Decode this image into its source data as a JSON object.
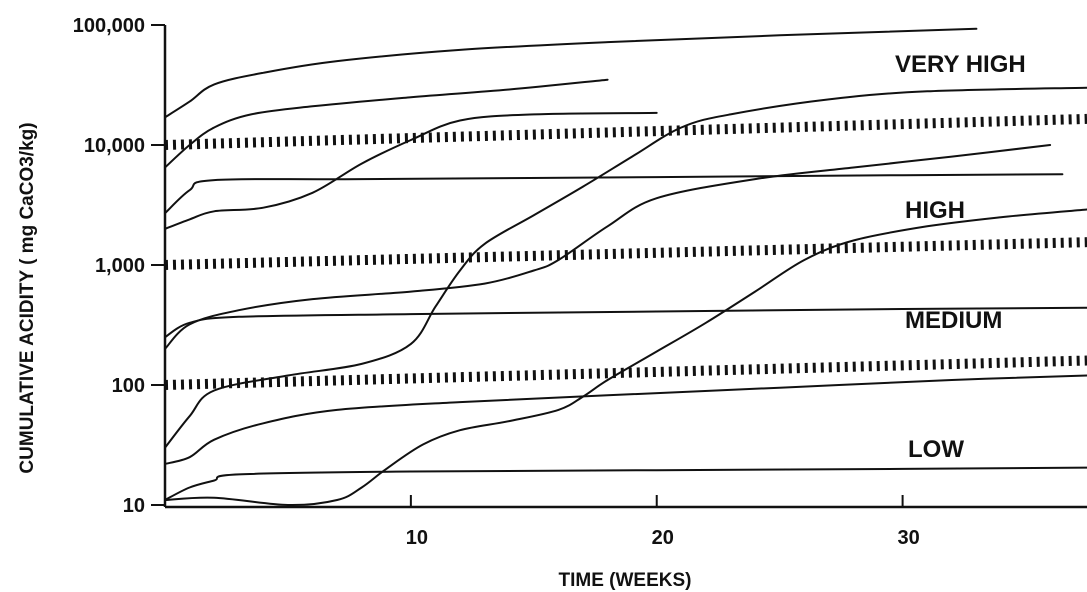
{
  "chart_data": {
    "type": "line",
    "xlabel": "TIME (WEEKS)",
    "ylabel": "CUMULATIVE ACIDITY ( mg CaCO3/kg)",
    "xlim": [
      0,
      37.5
    ],
    "ylim": [
      10,
      100000
    ],
    "yscale": "log",
    "grid": false,
    "x_ticks": [
      {
        "value": 10,
        "label": "10"
      },
      {
        "value": 20,
        "label": "20"
      },
      {
        "value": 30,
        "label": "30"
      }
    ],
    "y_ticks": [
      {
        "value": 10,
        "label": "10"
      },
      {
        "value": 100,
        "label": "100"
      },
      {
        "value": 1000,
        "label": "1,000"
      },
      {
        "value": 10000,
        "label": "10,000"
      },
      {
        "value": 100000,
        "label": "100,000"
      }
    ],
    "zones": [
      {
        "label": "VERY HIGH"
      },
      {
        "label": "HIGH"
      },
      {
        "label": "MEDIUM"
      },
      {
        "label": "LOW"
      }
    ],
    "zone_boundaries": [
      {
        "points": [
          [
            0,
            100
          ],
          [
            37.5,
            160
          ]
        ]
      },
      {
        "points": [
          [
            0,
            1000
          ],
          [
            37.5,
            1550
          ]
        ]
      },
      {
        "points": [
          [
            0,
            10000
          ],
          [
            37.5,
            16500
          ]
        ]
      }
    ],
    "series": [
      {
        "points": [
          [
            0,
            17000
          ],
          [
            1,
            23000
          ],
          [
            2,
            32000
          ],
          [
            4,
            40000
          ],
          [
            7,
            50000
          ],
          [
            12,
            62000
          ],
          [
            18,
            72000
          ],
          [
            25,
            82000
          ],
          [
            33,
            93000
          ]
        ]
      },
      {
        "points": [
          [
            0,
            6500
          ],
          [
            1,
            10000
          ],
          [
            2,
            14000
          ],
          [
            3.5,
            18000
          ],
          [
            6,
            21000
          ],
          [
            10,
            25000
          ],
          [
            14,
            29000
          ],
          [
            18,
            35000
          ]
        ]
      },
      {
        "points": [
          [
            0,
            2000
          ],
          [
            1,
            2400
          ],
          [
            2,
            2800
          ],
          [
            4,
            3000
          ],
          [
            6,
            4000
          ],
          [
            8,
            7000
          ],
          [
            10,
            11000
          ],
          [
            12,
            16000
          ],
          [
            15,
            18000
          ],
          [
            20,
            18500
          ]
        ]
      },
      {
        "points": [
          [
            0,
            2700
          ],
          [
            1,
            4200
          ],
          [
            2,
            5100
          ],
          [
            8,
            5200
          ],
          [
            20,
            5400
          ],
          [
            30,
            5600
          ],
          [
            36.5,
            5700
          ]
        ]
      },
      {
        "points": [
          [
            0,
            200
          ],
          [
            1,
            320
          ],
          [
            3,
            420
          ],
          [
            6,
            520
          ],
          [
            10,
            600
          ],
          [
            13,
            700
          ],
          [
            15,
            900
          ],
          [
            16,
            1100
          ],
          [
            18,
            2100
          ],
          [
            20,
            3600
          ],
          [
            24,
            5200
          ],
          [
            28,
            6500
          ],
          [
            32,
            8000
          ],
          [
            36,
            10000
          ]
        ]
      },
      {
        "points": [
          [
            0,
            250
          ],
          [
            1,
            330
          ],
          [
            3,
            370
          ],
          [
            10,
            390
          ],
          [
            20,
            410
          ],
          [
            30,
            430
          ],
          [
            37.5,
            440
          ]
        ]
      },
      {
        "points": [
          [
            0,
            30
          ],
          [
            1,
            55
          ],
          [
            2,
            90
          ],
          [
            5,
            120
          ],
          [
            8,
            150
          ],
          [
            10,
            220
          ],
          [
            11,
            450
          ],
          [
            12,
            900
          ],
          [
            13,
            1500
          ],
          [
            15,
            2600
          ],
          [
            17,
            4500
          ],
          [
            19,
            8000
          ],
          [
            21,
            14000
          ],
          [
            23,
            18000
          ],
          [
            27,
            24000
          ],
          [
            31,
            28000
          ],
          [
            37.5,
            30000
          ]
        ]
      },
      {
        "points": [
          [
            0,
            22
          ],
          [
            1,
            25
          ],
          [
            2,
            35
          ],
          [
            4,
            48
          ],
          [
            7,
            62
          ],
          [
            12,
            72
          ],
          [
            18,
            82
          ],
          [
            25,
            95
          ],
          [
            32,
            110
          ],
          [
            37.5,
            120
          ]
        ]
      },
      {
        "points": [
          [
            0,
            11
          ],
          [
            2,
            11.5
          ],
          [
            5,
            10
          ],
          [
            7,
            11
          ],
          [
            8,
            14
          ],
          [
            9,
            20
          ],
          [
            10.5,
            32
          ],
          [
            12,
            42
          ],
          [
            14,
            50
          ],
          [
            16,
            62
          ],
          [
            17,
            80
          ],
          [
            18,
            110
          ],
          [
            20,
            190
          ],
          [
            22,
            330
          ],
          [
            24,
            600
          ],
          [
            26,
            1100
          ],
          [
            28,
            1600
          ],
          [
            31,
            2100
          ],
          [
            34,
            2500
          ],
          [
            37.5,
            2900
          ]
        ]
      },
      {
        "points": [
          [
            0,
            11
          ],
          [
            1,
            14
          ],
          [
            2,
            16
          ],
          [
            3,
            18
          ],
          [
            10,
            19
          ],
          [
            20,
            19.5
          ],
          [
            30,
            20
          ],
          [
            37.5,
            20.5
          ]
        ]
      }
    ]
  }
}
